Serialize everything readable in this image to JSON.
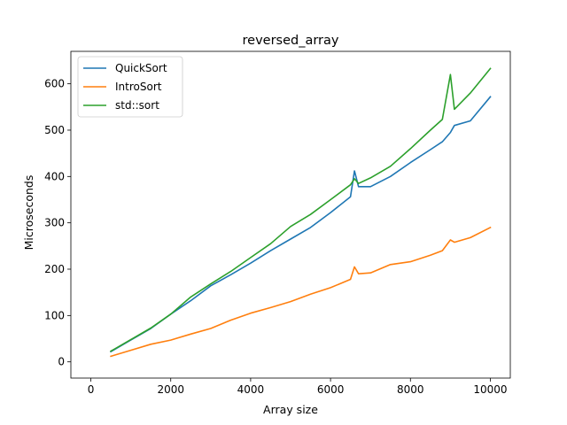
{
  "chart_data": {
    "type": "line",
    "title": "reversed_array",
    "xlabel": "Array size",
    "ylabel": "Microseconds",
    "xlim": [
      -500,
      10500
    ],
    "ylim": [
      -35,
      670
    ],
    "x_ticks": [
      0,
      2000,
      4000,
      6000,
      8000,
      10000
    ],
    "y_ticks": [
      0,
      100,
      200,
      300,
      400,
      500,
      600
    ],
    "x_tick_labels": [
      "0",
      "2000",
      "4000",
      "6000",
      "8000",
      "10000"
    ],
    "y_tick_labels": [
      "0",
      "100",
      "200",
      "300",
      "400",
      "500",
      "600"
    ],
    "grid": false,
    "legend_position": "upper-left",
    "x": [
      500,
      1000,
      1500,
      2000,
      2500,
      3000,
      3500,
      4000,
      4500,
      5000,
      5500,
      6000,
      6500,
      6600,
      6700,
      7000,
      7500,
      8000,
      8500,
      8800,
      9000,
      9100,
      9500,
      10000
    ],
    "series": [
      {
        "name": "QuickSort",
        "color": "#1f77b4",
        "values": [
          22,
          47,
          72,
          103,
          132,
          164,
          188,
          213,
          240,
          265,
          290,
          322,
          356,
          412,
          378,
          378,
          400,
          430,
          458,
          475,
          495,
          510,
          520,
          572
        ]
      },
      {
        "name": "IntroSort",
        "color": "#ff7f0e",
        "values": [
          12,
          25,
          38,
          47,
          60,
          72,
          90,
          105,
          117,
          130,
          146,
          160,
          178,
          205,
          190,
          192,
          210,
          216,
          230,
          240,
          263,
          258,
          268,
          290
        ]
      },
      {
        "name": "std::sort",
        "color": "#2ca02c",
        "values": [
          23,
          48,
          73,
          103,
          140,
          168,
          195,
          225,
          255,
          292,
          318,
          350,
          382,
          395,
          385,
          397,
          422,
          460,
          500,
          523,
          620,
          545,
          580,
          633
        ]
      }
    ]
  }
}
